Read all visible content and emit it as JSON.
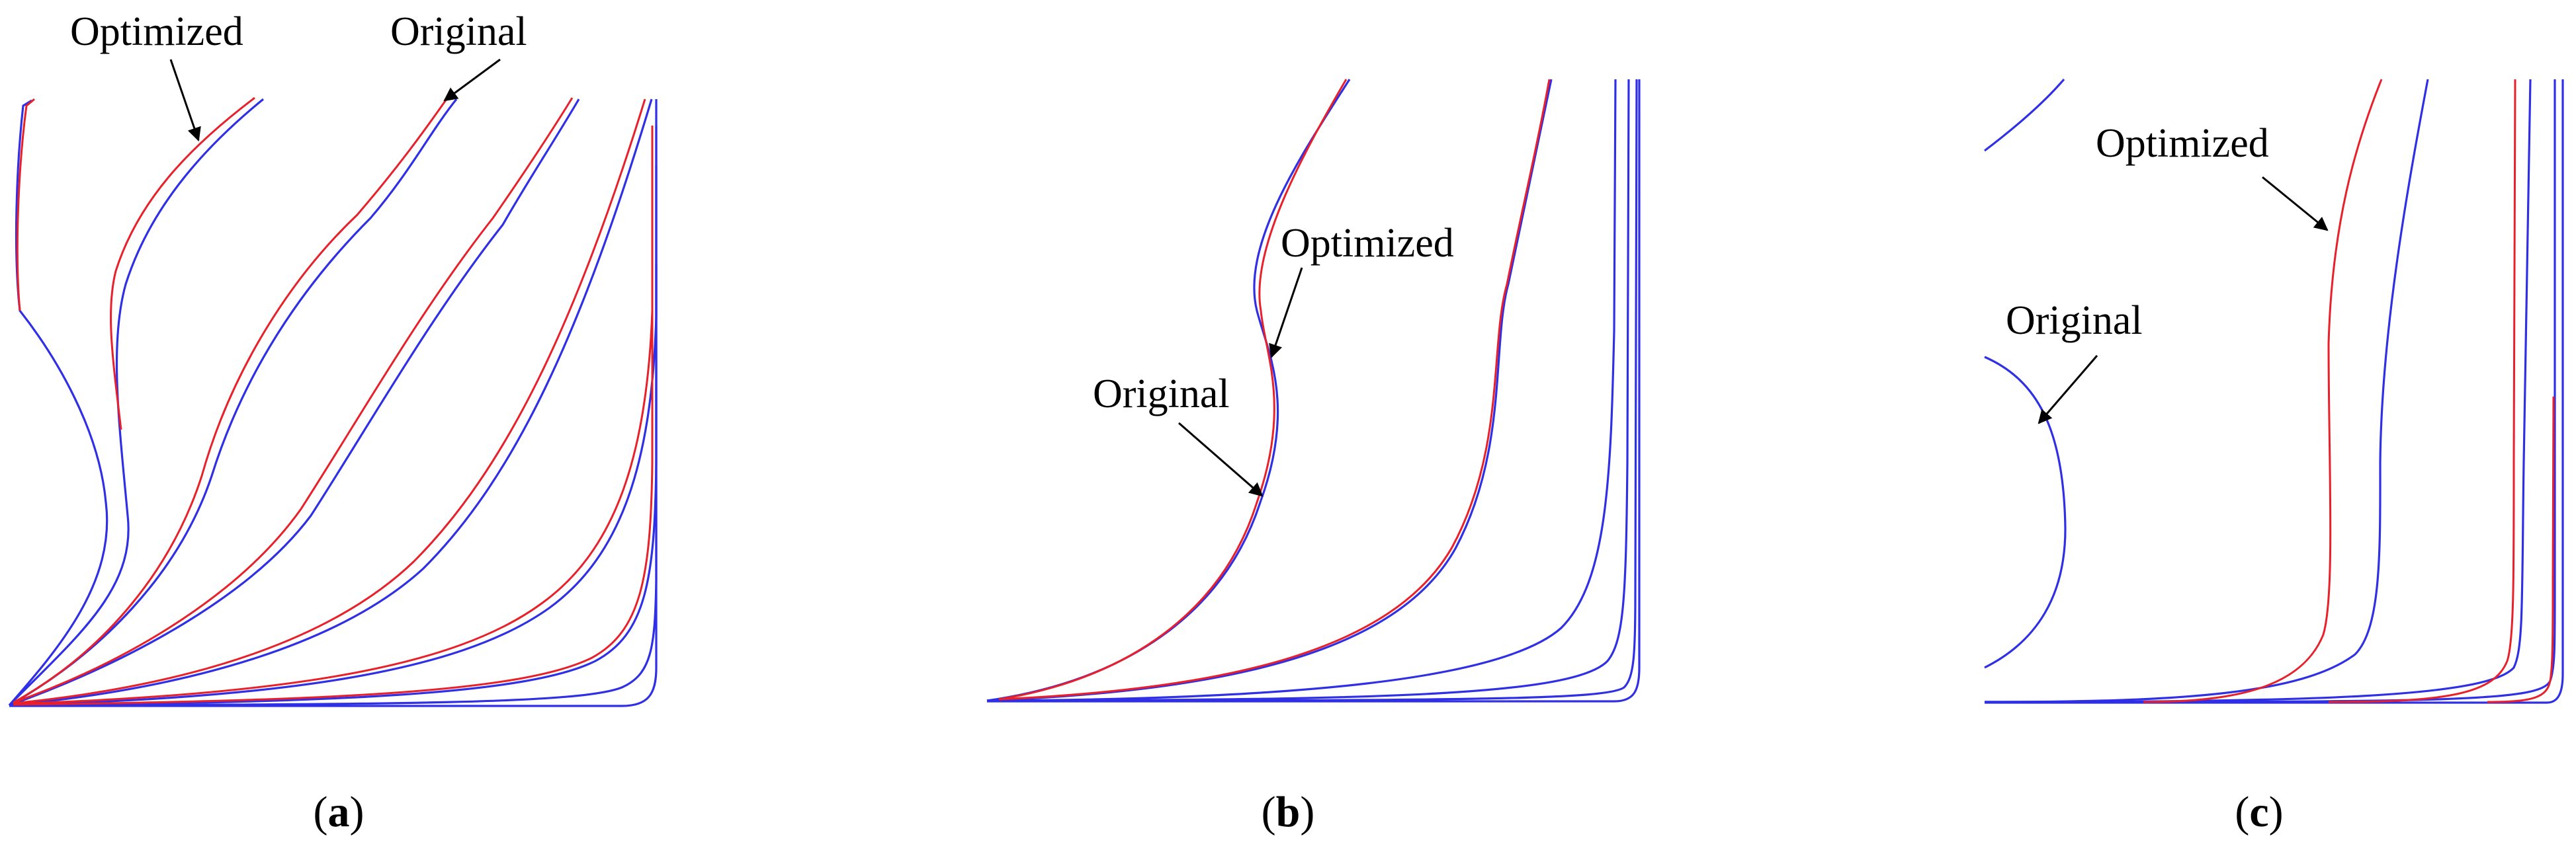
{
  "panels": [
    {
      "id": "a",
      "caption": {
        "open": "(",
        "letter": "a",
        "close": ")"
      },
      "annotations": {
        "optimized": "Optimized",
        "original": "Original"
      }
    },
    {
      "id": "b",
      "caption": {
        "open": "(",
        "letter": "b",
        "close": ")"
      },
      "annotations": {
        "optimized": "Optimized",
        "original": "Original"
      }
    },
    {
      "id": "c",
      "caption": {
        "open": "(",
        "letter": "c",
        "close": ")"
      },
      "annotations": {
        "optimized": "Optimized",
        "original": "Original"
      }
    }
  ],
  "colors": {
    "optimized": "#e8202a",
    "original": "#2f2fe6",
    "text": "#000000",
    "background": "#ffffff"
  }
}
